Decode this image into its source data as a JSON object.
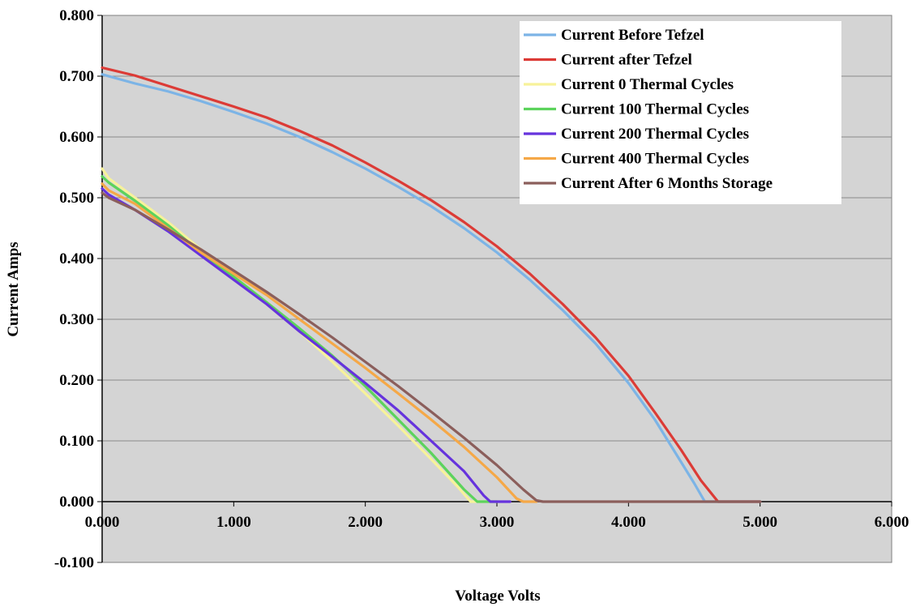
{
  "chart_data": {
    "type": "line",
    "xlabel": "Voltage Volts",
    "ylabel": "Current Amps",
    "xlim": [
      0,
      6
    ],
    "ylim": [
      -0.1,
      0.8
    ],
    "x_ticks": [
      "0.000",
      "1.000",
      "2.000",
      "3.000",
      "4.000",
      "5.000",
      "6.000"
    ],
    "y_ticks": [
      "0.800",
      "0.700",
      "0.600",
      "0.500",
      "0.400",
      "0.300",
      "0.200",
      "0.100",
      "0.000",
      "-0.100"
    ],
    "grid": true,
    "plot_background": "#d4d4d4",
    "legend_position": "top-right",
    "series": [
      {
        "name": "Current Before Tefzel",
        "color": "#7cb4e6",
        "points": [
          [
            0,
            0.703
          ],
          [
            0.25,
            0.688
          ],
          [
            0.5,
            0.675
          ],
          [
            0.75,
            0.659
          ],
          [
            1.0,
            0.641
          ],
          [
            1.25,
            0.622
          ],
          [
            1.5,
            0.6
          ],
          [
            1.75,
            0.575
          ],
          [
            2.0,
            0.548
          ],
          [
            2.25,
            0.518
          ],
          [
            2.5,
            0.486
          ],
          [
            2.75,
            0.45
          ],
          [
            3.0,
            0.41
          ],
          [
            3.25,
            0.365
          ],
          [
            3.5,
            0.315
          ],
          [
            3.75,
            0.26
          ],
          [
            4.0,
            0.195
          ],
          [
            4.2,
            0.135
          ],
          [
            4.4,
            0.065
          ],
          [
            4.5,
            0.03
          ],
          [
            4.58,
            0.0
          ],
          [
            4.7,
            0.0
          ],
          [
            5.0,
            0.0
          ]
        ]
      },
      {
        "name": "Current after Tefzel",
        "color": "#dc3b36",
        "points": [
          [
            0,
            0.714
          ],
          [
            0.25,
            0.701
          ],
          [
            0.5,
            0.684
          ],
          [
            0.75,
            0.667
          ],
          [
            1.0,
            0.65
          ],
          [
            1.25,
            0.632
          ],
          [
            1.5,
            0.61
          ],
          [
            1.75,
            0.586
          ],
          [
            2.0,
            0.558
          ],
          [
            2.25,
            0.528
          ],
          [
            2.5,
            0.496
          ],
          [
            2.75,
            0.46
          ],
          [
            3.0,
            0.42
          ],
          [
            3.25,
            0.375
          ],
          [
            3.5,
            0.325
          ],
          [
            3.75,
            0.27
          ],
          [
            4.0,
            0.207
          ],
          [
            4.2,
            0.147
          ],
          [
            4.4,
            0.085
          ],
          [
            4.55,
            0.035
          ],
          [
            4.68,
            0.0
          ],
          [
            4.8,
            0.0
          ],
          [
            5.0,
            0.0
          ]
        ]
      },
      {
        "name": "Current 0 Thermal Cycles",
        "color": "#f7f29a",
        "points": [
          [
            0,
            0.548
          ],
          [
            0.05,
            0.532
          ],
          [
            0.25,
            0.5
          ],
          [
            0.5,
            0.46
          ],
          [
            0.75,
            0.415
          ],
          [
            1.0,
            0.37
          ],
          [
            1.25,
            0.325
          ],
          [
            1.5,
            0.28
          ],
          [
            1.75,
            0.23
          ],
          [
            2.0,
            0.178
          ],
          [
            2.25,
            0.125
          ],
          [
            2.5,
            0.07
          ],
          [
            2.7,
            0.025
          ],
          [
            2.8,
            0.0
          ],
          [
            2.9,
            0.0
          ],
          [
            3.0,
            0.0
          ]
        ]
      },
      {
        "name": "Current 100 Thermal Cycles",
        "color": "#5cd35c",
        "points": [
          [
            0,
            0.535
          ],
          [
            0.05,
            0.525
          ],
          [
            0.25,
            0.495
          ],
          [
            0.5,
            0.455
          ],
          [
            0.75,
            0.41
          ],
          [
            1.0,
            0.37
          ],
          [
            1.25,
            0.328
          ],
          [
            1.5,
            0.285
          ],
          [
            1.75,
            0.24
          ],
          [
            2.0,
            0.19
          ],
          [
            2.25,
            0.135
          ],
          [
            2.5,
            0.08
          ],
          [
            2.75,
            0.02
          ],
          [
            2.85,
            0.0
          ],
          [
            2.95,
            0.0
          ],
          [
            3.0,
            0.0
          ]
        ]
      },
      {
        "name": "Current 200 Thermal Cycles",
        "color": "#6633dd",
        "points": [
          [
            0,
            0.515
          ],
          [
            0.05,
            0.505
          ],
          [
            0.25,
            0.48
          ],
          [
            0.5,
            0.445
          ],
          [
            0.75,
            0.405
          ],
          [
            1.0,
            0.365
          ],
          [
            1.25,
            0.325
          ],
          [
            1.5,
            0.28
          ],
          [
            1.75,
            0.238
          ],
          [
            2.0,
            0.195
          ],
          [
            2.25,
            0.15
          ],
          [
            2.5,
            0.1
          ],
          [
            2.75,
            0.05
          ],
          [
            2.9,
            0.01
          ],
          [
            2.95,
            0.0
          ],
          [
            3.1,
            0.0
          ]
        ]
      },
      {
        "name": "Current 400 Thermal Cycles",
        "color": "#f5a847",
        "points": [
          [
            0,
            0.523
          ],
          [
            0.05,
            0.512
          ],
          [
            0.25,
            0.49
          ],
          [
            0.5,
            0.45
          ],
          [
            0.75,
            0.41
          ],
          [
            1.0,
            0.375
          ],
          [
            1.25,
            0.34
          ],
          [
            1.5,
            0.3
          ],
          [
            1.75,
            0.26
          ],
          [
            2.0,
            0.22
          ],
          [
            2.25,
            0.178
          ],
          [
            2.5,
            0.135
          ],
          [
            2.75,
            0.09
          ],
          [
            3.0,
            0.04
          ],
          [
            3.15,
            0.005
          ],
          [
            3.2,
            0.0
          ],
          [
            3.3,
            0.0
          ]
        ]
      },
      {
        "name": "Current After 6 Months Storage",
        "color": "#8b5e5b",
        "points": [
          [
            0,
            0.508
          ],
          [
            0.05,
            0.5
          ],
          [
            0.25,
            0.48
          ],
          [
            0.5,
            0.448
          ],
          [
            0.75,
            0.415
          ],
          [
            1.0,
            0.38
          ],
          [
            1.25,
            0.345
          ],
          [
            1.5,
            0.308
          ],
          [
            1.75,
            0.27
          ],
          [
            2.0,
            0.23
          ],
          [
            2.25,
            0.19
          ],
          [
            2.5,
            0.148
          ],
          [
            2.75,
            0.105
          ],
          [
            3.0,
            0.06
          ],
          [
            3.2,
            0.02
          ],
          [
            3.3,
            0.002
          ],
          [
            3.35,
            0.0
          ],
          [
            5.0,
            0.0
          ]
        ]
      }
    ]
  }
}
